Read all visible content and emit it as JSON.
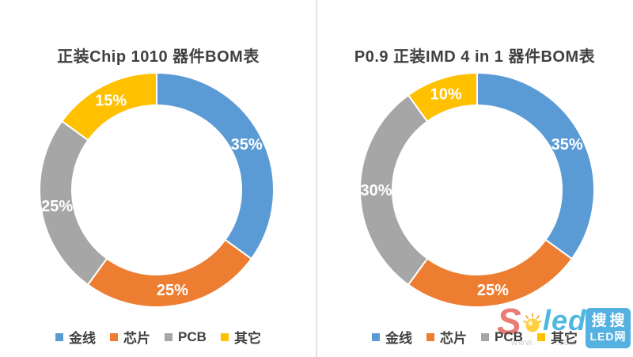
{
  "page": {
    "background_color": "#ffffff",
    "divider_color": "#e2e2e5",
    "text_color": "#404040"
  },
  "chart_data": [
    {
      "type": "donut",
      "title": "正装Chip 1010 器件BOM表",
      "categories": [
        "金线",
        "芯片",
        "PCB",
        "其它"
      ],
      "values": [
        35,
        25,
        25,
        15
      ],
      "labels": [
        "35%",
        "25%",
        "25%",
        "15%"
      ],
      "colors": [
        "#5B9BD5",
        "#ED7D31",
        "#A6A6A6",
        "#FFC000"
      ],
      "start_angle_deg": 0,
      "direction": "clockwise",
      "hole_ratio": 0.723,
      "legend_position": "bottom",
      "label_color": "#ffffff"
    },
    {
      "type": "donut",
      "title": "P0.9 正装IMD 4 in 1 器件BOM表",
      "categories": [
        "金线",
        "芯片",
        "PCB",
        "其它"
      ],
      "values": [
        35,
        25,
        30,
        10
      ],
      "labels": [
        "35%",
        "25%",
        "30%",
        "10%"
      ],
      "colors": [
        "#5B9BD5",
        "#ED7D31",
        "#A6A6A6",
        "#FFC000"
      ],
      "start_angle_deg": 0,
      "direction": "clockwise",
      "hole_ratio": 0.723,
      "legend_position": "bottom",
      "label_color": "#ffffff"
    }
  ],
  "watermark": {
    "brand_s": "S",
    "brand_led": "led",
    "url_prefix": "www.",
    "url_suffix": ".com",
    "badge_line1": "搜搜",
    "badge_line2": "LED网",
    "s_color": "#e97c74",
    "led_color": "#4eb8e0",
    "bulb_color": "#ffcf3e",
    "badge_color": "#55b1e1"
  }
}
